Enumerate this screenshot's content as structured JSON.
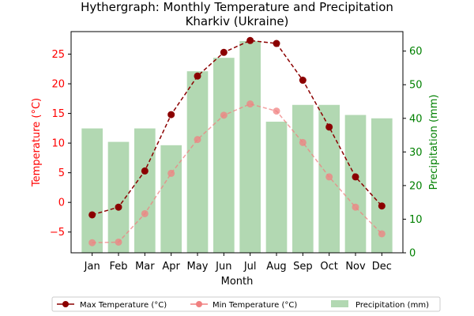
{
  "chart_data": {
    "type": "bar",
    "title": "Hythergraph: Monthly Temperature and Precipitation\nKharkiv (Ukraine)",
    "xlabel": "Month",
    "ylabel_left": "Temperature (°C)",
    "ylabel_right": "Precipitation (mm)",
    "categories": [
      "Jan",
      "Feb",
      "Mar",
      "Apr",
      "May",
      "Jun",
      "Jul",
      "Aug",
      "Sep",
      "Oct",
      "Nov",
      "Dec"
    ],
    "ylim_left": [
      -8.5,
      28.8
    ],
    "ylim_right": [
      0,
      65.8
    ],
    "yticks_left": [
      -5,
      0,
      5,
      10,
      15,
      20,
      25
    ],
    "yticks_right": [
      0,
      10,
      20,
      30,
      40,
      50,
      60
    ],
    "grid": false,
    "legend_position": "bottom",
    "series": [
      {
        "name": "Max Temperature (°C)",
        "type": "line",
        "axis": "left",
        "color": "#8b0000",
        "values": [
          -2.1,
          -0.8,
          5.3,
          14.8,
          21.3,
          25.3,
          27.3,
          26.8,
          20.6,
          12.7,
          4.3,
          -0.6
        ]
      },
      {
        "name": "Min Temperature (°C)",
        "type": "line",
        "axis": "left",
        "color": "#f08080",
        "values": [
          -6.8,
          -6.7,
          -1.9,
          4.9,
          10.6,
          14.7,
          16.6,
          15.4,
          10.1,
          4.3,
          -0.8,
          -5.3
        ]
      },
      {
        "name": "Precipitation (mm)",
        "type": "bar",
        "axis": "right",
        "color": "#b2d8b2",
        "values": [
          37,
          33,
          37,
          32,
          54,
          58,
          63,
          39,
          44,
          44,
          41,
          40
        ]
      }
    ]
  }
}
